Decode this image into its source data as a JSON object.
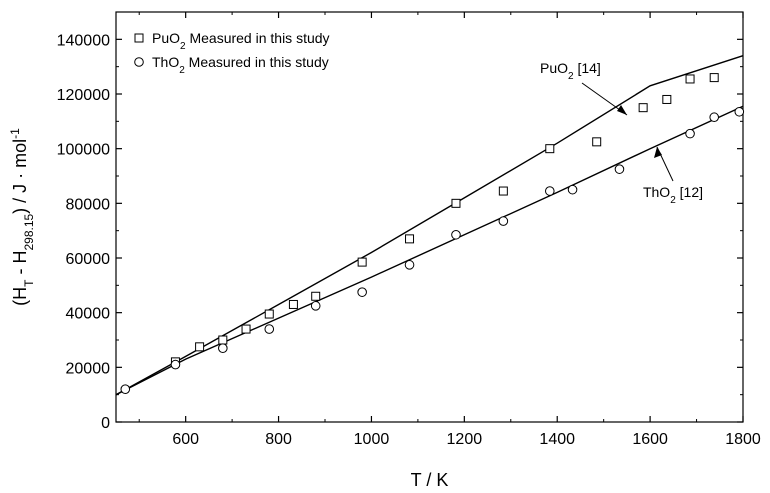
{
  "chart_data": {
    "type": "scatter",
    "xlabel": "T / K",
    "ylabel": "(H_T - H_298.15) / J · mol^-1",
    "xlim": [
      450,
      1800
    ],
    "ylim": [
      0,
      150000
    ],
    "x_ticks": [
      600,
      800,
      1000,
      1200,
      1400,
      1600,
      1800
    ],
    "y_ticks": [
      0,
      20000,
      40000,
      60000,
      80000,
      100000,
      120000,
      140000
    ],
    "legend_position": "top-left",
    "series": [
      {
        "name": "PuO2 Measured in this study",
        "marker": "square",
        "x": [
          578,
          630,
          680,
          730,
          780,
          832,
          880,
          980,
          1082,
          1182,
          1284,
          1384,
          1485,
          1585,
          1636,
          1686,
          1738
        ],
        "y": [
          22000,
          27500,
          30000,
          34000,
          39500,
          43000,
          46000,
          58500,
          67000,
          80000,
          84500,
          100000,
          102500,
          115000,
          118000,
          125500,
          126000
        ]
      },
      {
        "name": "ThO2 Measured in this study",
        "marker": "circle",
        "x": [
          470,
          578,
          680,
          780,
          880,
          980,
          1082,
          1182,
          1284,
          1384,
          1433,
          1534,
          1686,
          1738,
          1792
        ],
        "y": [
          12000,
          21000,
          27000,
          34000,
          42500,
          47500,
          57500,
          68500,
          73500,
          84500,
          85000,
          92500,
          105500,
          111500,
          113500
        ]
      }
    ],
    "curves": [
      {
        "name": "PuO2 [14]",
        "x": [
          450,
          600,
          800,
          1000,
          1200,
          1400,
          1600,
          1800
        ],
        "y": [
          10000,
          24000,
          43000,
          62000,
          82000,
          102000,
          123000,
          134000
        ]
      },
      {
        "name": "ThO2 [12]",
        "x": [
          450,
          600,
          800,
          1000,
          1200,
          1400,
          1600,
          1800
        ],
        "y": [
          10000,
          23000,
          38000,
          53000,
          68500,
          84000,
          100000,
          115500
        ]
      }
    ],
    "annotations": [
      {
        "label": "PuO2 [14]",
        "main": "PuO",
        "sub": "2",
        "rest": " [14]"
      },
      {
        "label": "ThO2 [12]",
        "main": "ThO",
        "sub": "2",
        "rest": " [12]"
      }
    ],
    "colors": {
      "line": "#000000",
      "marker_fill": "#ffffff",
      "background": "#ffffff"
    }
  }
}
